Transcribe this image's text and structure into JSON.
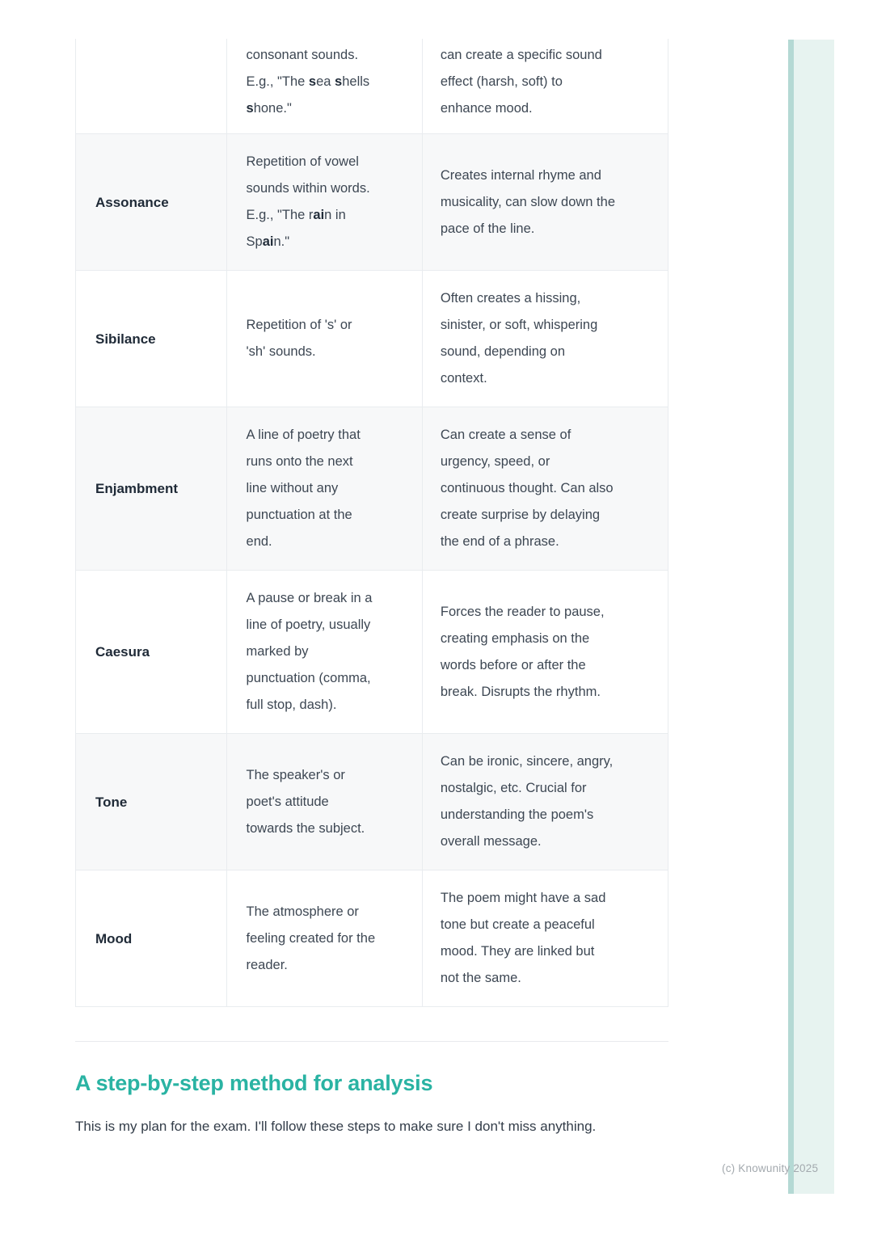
{
  "colors": {
    "accent_teal": "#2ab3a3",
    "sidebar_strip": "#b4d9d4",
    "sidebar_panel": "#e7f3f0",
    "row_stripe": "#f7f8f9",
    "table_border": "#e9ecef",
    "watermark_gray": "#a3a9ae"
  },
  "table": {
    "rows": [
      {
        "term": "",
        "definition": [
          {
            "text": "consonant sounds.\nE.g., \"The ",
            "bold": false
          },
          {
            "text": "s",
            "bold": true
          },
          {
            "text": "ea ",
            "bold": false
          },
          {
            "text": "s",
            "bold": true
          },
          {
            "text": "hells\n",
            "bold": false
          },
          {
            "text": "s",
            "bold": true
          },
          {
            "text": "hone.\"",
            "bold": false
          }
        ],
        "effect": "can create a specific sound\neffect (harsh, soft) to\nenhance mood."
      },
      {
        "term": "Assonance",
        "definition": [
          {
            "text": "Repetition of vowel\nsounds within words.\nE.g., \"The r",
            "bold": false
          },
          {
            "text": "ai",
            "bold": true
          },
          {
            "text": "n in\nSp",
            "bold": false
          },
          {
            "text": "ai",
            "bold": true
          },
          {
            "text": "n.\"",
            "bold": false
          }
        ],
        "effect": "Creates internal rhyme and\nmusicality, can slow down the\npace of the line."
      },
      {
        "term": "Sibilance",
        "definition": [
          {
            "text": "Repetition of 's' or\n'sh' sounds.",
            "bold": false
          }
        ],
        "effect": "Often creates a hissing,\nsinister, or soft, whispering\nsound, depending on\ncontext."
      },
      {
        "term": "Enjambment",
        "definition": [
          {
            "text": "A line of poetry that\nruns onto the next\nline without any\npunctuation at the\nend.",
            "bold": false
          }
        ],
        "effect": "Can create a sense of\nurgency, speed, or\ncontinuous thought. Can also\ncreate surprise by delaying\nthe end of a phrase."
      },
      {
        "term": "Caesura",
        "definition": [
          {
            "text": "A pause or break in a\nline of poetry, usually\nmarked by\npunctuation (comma,\nfull stop, dash).",
            "bold": false
          }
        ],
        "effect": "Forces the reader to pause,\ncreating emphasis on the\nwords before or after the\nbreak. Disrupts the rhythm."
      },
      {
        "term": "Tone",
        "definition": [
          {
            "text": "The speaker's or\npoet's attitude\ntowards the subject.",
            "bold": false
          }
        ],
        "effect": "Can be ironic, sincere, angry,\nnostalgic, etc. Crucial for\nunderstanding the poem's\noverall message."
      },
      {
        "term": "Mood",
        "definition": [
          {
            "text": "The atmosphere or\nfeeling created for the\nreader.",
            "bold": false
          }
        ],
        "effect": "The poem might have a sad\ntone but create a peaceful\nmood. They are linked but\nnot the same."
      }
    ]
  },
  "section": {
    "heading": "A step-by-step method for analysis",
    "paragraph": "This is my plan for the exam. I'll follow these steps to make sure I don't miss anything."
  },
  "footer": {
    "watermark": "(c) Knowunity 2025"
  }
}
